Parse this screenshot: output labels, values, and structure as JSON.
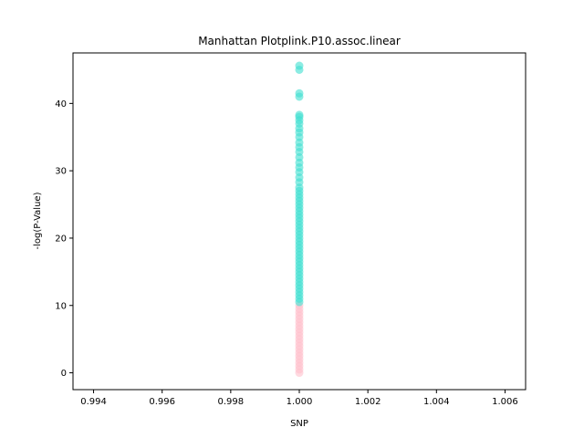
{
  "chart_data": {
    "type": "scatter",
    "title": "Manhattan Plotplink.P10.assoc.linear",
    "xlabel": "SNP",
    "ylabel": "-log(P-Value)",
    "xlim": [
      0.9934,
      1.0066
    ],
    "ylim": [
      -2.5,
      47.5
    ],
    "xticks": [
      "0.994",
      "0.996",
      "0.998",
      "1.000",
      "1.002",
      "1.004",
      "1.006"
    ],
    "xtick_values": [
      0.994,
      0.996,
      0.998,
      1.0,
      1.002,
      1.004,
      1.006
    ],
    "yticks": [
      "0",
      "10",
      "20",
      "30",
      "40"
    ],
    "ytick_values": [
      0,
      10,
      20,
      30,
      40
    ],
    "grid": false,
    "series": [
      {
        "color": "#ffc0cb",
        "x": 1.0,
        "y": [
          0,
          0.5,
          1,
          1.5,
          2,
          2.5,
          3,
          3.5,
          4,
          4.5,
          5,
          5.5,
          6,
          6.5,
          7,
          7.5,
          8,
          8.5,
          9,
          9.5,
          10
        ]
      },
      {
        "color": "#40e0d0",
        "x": 1.0,
        "y": [
          10.5,
          11,
          11.5,
          12,
          12.5,
          13,
          13.5,
          14,
          14.5,
          15,
          15.5,
          16,
          16.5,
          17,
          17.5,
          18,
          18.5,
          19,
          19.5,
          20,
          20.5,
          21,
          21.5,
          22,
          22.5,
          23,
          23.5,
          24,
          24.5,
          25,
          25.5,
          26,
          26.5,
          27,
          27.5,
          28.3,
          29,
          29.8,
          30.5,
          31.2,
          32,
          32.8,
          33.5,
          34.2,
          35,
          35.7,
          36.3,
          37,
          37.5,
          38,
          38.3,
          41,
          41.5,
          45,
          45.6
        ]
      }
    ]
  }
}
